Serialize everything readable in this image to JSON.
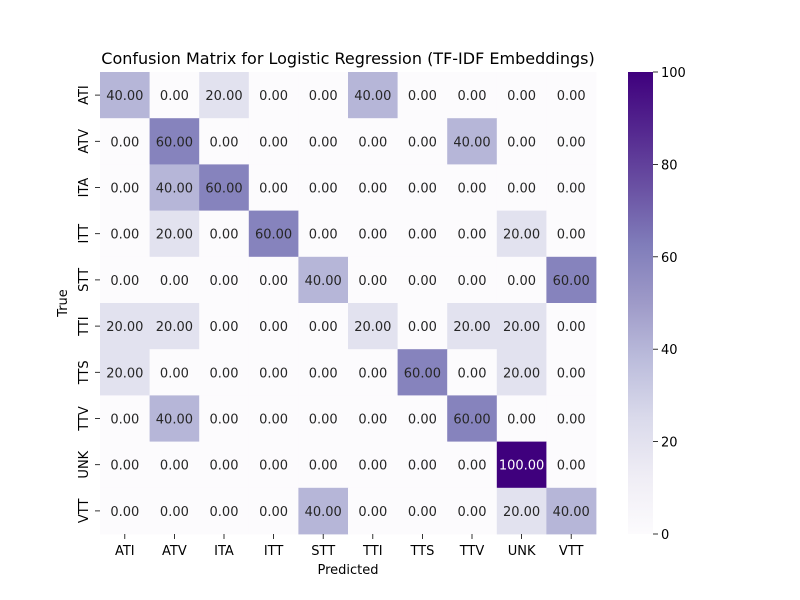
{
  "chart_data": {
    "type": "heatmap",
    "title": "Confusion Matrix for Logistic Regression (TF-IDF Embeddings)",
    "xlabel": "Predicted",
    "ylabel": "True",
    "x_categories": [
      "ATI",
      "ATV",
      "ITA",
      "ITT",
      "STT",
      "TTI",
      "TTS",
      "TTV",
      "UNK",
      "VTT"
    ],
    "y_categories": [
      "ATI",
      "ATV",
      "ITA",
      "ITT",
      "STT",
      "TTI",
      "TTS",
      "TTV",
      "UNK",
      "VTT"
    ],
    "values": [
      [
        40,
        0,
        20,
        0,
        0,
        40,
        0,
        0,
        0,
        0
      ],
      [
        0,
        60,
        0,
        0,
        0,
        0,
        0,
        40,
        0,
        0
      ],
      [
        0,
        40,
        60,
        0,
        0,
        0,
        0,
        0,
        0,
        0
      ],
      [
        0,
        20,
        0,
        60,
        0,
        0,
        0,
        0,
        20,
        0
      ],
      [
        0,
        0,
        0,
        0,
        40,
        0,
        0,
        0,
        0,
        60
      ],
      [
        20,
        20,
        0,
        0,
        0,
        20,
        0,
        20,
        20,
        0
      ],
      [
        20,
        0,
        0,
        0,
        0,
        0,
        60,
        0,
        20,
        0
      ],
      [
        0,
        40,
        0,
        0,
        0,
        0,
        0,
        60,
        0,
        0
      ],
      [
        0,
        0,
        0,
        0,
        0,
        0,
        0,
        0,
        100,
        0
      ],
      [
        0,
        0,
        0,
        0,
        40,
        0,
        0,
        0,
        20,
        40
      ]
    ],
    "value_format": "fixed-2",
    "colorbar": {
      "range": [
        0,
        100
      ],
      "ticks": [
        0,
        20,
        40,
        60,
        80,
        100
      ],
      "colormap": "Purples",
      "color_stops": [
        "#fcfbfd",
        "#efedf5",
        "#dadaeb",
        "#bcbddc",
        "#9e9ac8",
        "#807dba",
        "#6a51a3",
        "#54278f",
        "#3f007d"
      ]
    },
    "grid": false
  }
}
